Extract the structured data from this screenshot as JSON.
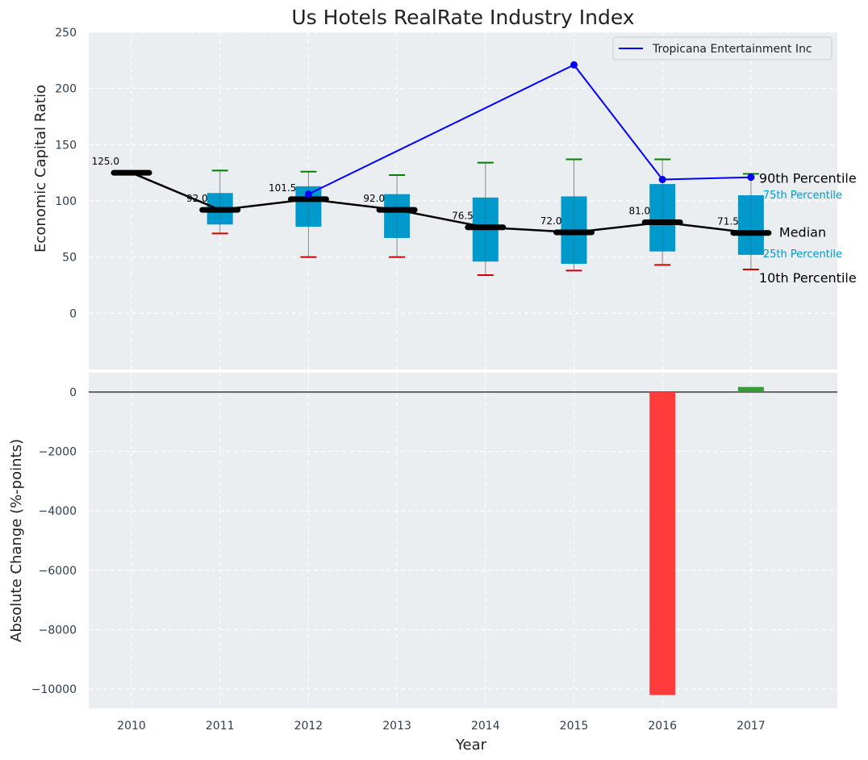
{
  "chart_data": [
    {
      "type": "box",
      "title": "Us Hotels RealRate Industry Index",
      "ylabel": "Economic Capital Ratio",
      "ylim": [
        -50,
        250
      ],
      "yticks": [
        0,
        50,
        100,
        150,
        200,
        250
      ],
      "categories": [
        "2010",
        "2011",
        "2012",
        "2013",
        "2014",
        "2015",
        "2016",
        "2017"
      ],
      "medians": [
        125.0,
        92.0,
        101.5,
        92.0,
        76.5,
        72.0,
        81.0,
        71.5
      ],
      "median_labels": [
        "125.0",
        "92.0",
        "101.5",
        "92.0",
        "76.5",
        "72.0",
        "81.0",
        "71.5"
      ],
      "q1": [
        125,
        79,
        77,
        67,
        46,
        44,
        55,
        52
      ],
      "q3": [
        125,
        107,
        113,
        106,
        103,
        104,
        115,
        105
      ],
      "p10": [
        125,
        71,
        50,
        50,
        34,
        38,
        43,
        39
      ],
      "p90": [
        125,
        127,
        126,
        123,
        134,
        137,
        137,
        124
      ],
      "series": [
        {
          "name": "Tropicana Entertainment Inc",
          "x": [
            "2012",
            "2015",
            "2016",
            "2017"
          ],
          "values": [
            106,
            221,
            119,
            121
          ],
          "color": "#0000ff"
        }
      ],
      "annotations": {
        "p90": "90th Percentile",
        "q3": "75th Percentile",
        "median": "Median",
        "q1": "25th Percentile",
        "p10": "10th Percentile"
      },
      "colors": {
        "box": "#0099cc",
        "median": "#000000",
        "p90_cap": "#008000",
        "p10_cap": "#cc0000"
      },
      "legend": "top-right",
      "grid": true
    },
    {
      "type": "bar",
      "xlabel": "Year",
      "ylabel": "Absolute Change (%-points)",
      "ylim": [
        -10650,
        650
      ],
      "yticks": [
        0,
        -2000,
        -4000,
        -6000,
        -8000,
        -10000
      ],
      "ytick_labels": [
        "0",
        "−2000",
        "−4000",
        "−6000",
        "−8000",
        "−10000"
      ],
      "categories": [
        "2010",
        "2011",
        "2012",
        "2013",
        "2014",
        "2015",
        "2016",
        "2017"
      ],
      "values": [
        null,
        null,
        null,
        null,
        null,
        null,
        -10200,
        170
      ],
      "colors": {
        "negative": "#ff3b3b",
        "positive": "#3a9a3a"
      },
      "grid": true
    }
  ]
}
